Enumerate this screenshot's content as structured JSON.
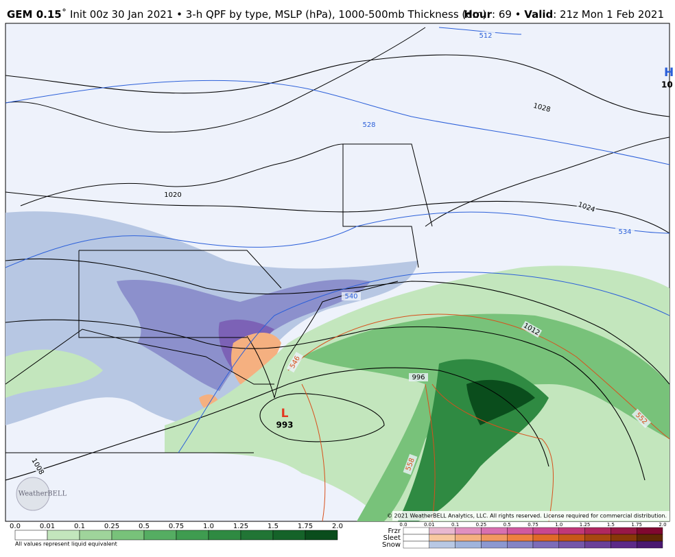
{
  "header": {
    "model": "GEM 0.15",
    "degree": "˚",
    "description": " Init 00z 30 Jan 2021 • 3-h QPF by type, MSLP (hPa), 1000-500mb Thickness (dm)",
    "hour_label": "Hour",
    "hour_value": ": 69 • ",
    "valid_label": "Valid",
    "valid_value": ": 21z Mon 1 Feb 2021"
  },
  "map": {
    "contour_labels": [
      "512",
      "528",
      "534",
      "540",
      "546",
      "552",
      "558",
      "1008",
      "1012",
      "1020",
      "1024",
      "1028",
      "996"
    ],
    "low": {
      "symbol": "L",
      "pressure": "993"
    },
    "high": {
      "symbol": "H",
      "pressure": "10"
    },
    "logo": "WeatherBELL",
    "copyright": "© 2021 WeatherBELL Analytics, LLC. All rights reserved. License required for commercial distribution."
  },
  "qpf_legend": {
    "ticks": [
      "0.0",
      "0.01",
      "0.1",
      "0.25",
      "0.5",
      "0.75",
      "1.0",
      "1.25",
      "1.5",
      "1.75",
      "2.0"
    ],
    "colors": [
      "#ffffff",
      "#c3e6bd",
      "#9fd49b",
      "#78c27a",
      "#55ad62",
      "#3f9c50",
      "#2f8a42",
      "#217535",
      "#156329",
      "#0a4d1c"
    ],
    "note": "All values represent liquid equivalent"
  },
  "ptype_legend": {
    "ticks": [
      "0.0",
      "0.01",
      "0.1",
      "0.25",
      "0.5",
      "0.75",
      "1.0",
      "1.25",
      "1.5",
      "1.75",
      "2.0"
    ],
    "rows": [
      {
        "label": "Frzr",
        "colors": [
          "#ffffff",
          "#e8b8d0",
          "#e090c0",
          "#d870b0",
          "#d05aa0",
          "#c84890",
          "#c03878",
          "#b02860",
          "#981848",
          "#800830"
        ]
      },
      {
        "label": "Sleet",
        "colors": [
          "#ffffff",
          "#f8c8a0",
          "#f5b080",
          "#f29860",
          "#ee8040",
          "#e06a28",
          "#c85818",
          "#a84810",
          "#883808",
          "#602804"
        ]
      },
      {
        "label": "Snow",
        "colors": [
          "#ffffff",
          "#b8c8e4",
          "#a0b4dc",
          "#8c98d0",
          "#8484c4",
          "#7c6cb8",
          "#7456a8",
          "#6a4098",
          "#5c2a88",
          "#4a1870"
        ]
      }
    ]
  }
}
